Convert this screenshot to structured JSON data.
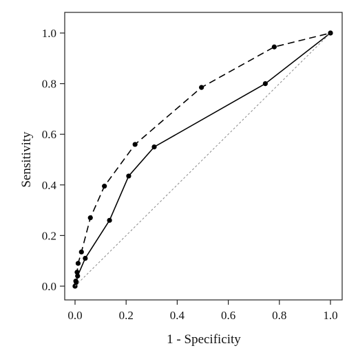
{
  "chart_data": {
    "type": "line",
    "xlabel": "1 - Specificity",
    "ylabel": "Sensitivity",
    "xlim": [
      0,
      1
    ],
    "ylim": [
      0,
      1
    ],
    "x_ticks": [
      "0.0",
      "0.2",
      "0.4",
      "0.6",
      "0.8",
      "1.0"
    ],
    "y_ticks": [
      "0.0",
      "0.2",
      "0.4",
      "0.6",
      "0.8",
      "1.0"
    ],
    "grid": false,
    "legend": "none",
    "series": [
      {
        "style": "solid",
        "color": "#000000",
        "points": [
          [
            0,
            0
          ],
          [
            0.005,
            0.015
          ],
          [
            0.01,
            0.04
          ],
          [
            0.04,
            0.11
          ],
          [
            0.135,
            0.26
          ],
          [
            0.21,
            0.435
          ],
          [
            0.31,
            0.55
          ],
          [
            0.745,
            0.8
          ],
          [
            1.0,
            1.0
          ]
        ]
      },
      {
        "style": "dashed",
        "color": "#000000",
        "points": [
          [
            0,
            0
          ],
          [
            0.003,
            0.02
          ],
          [
            0.008,
            0.055
          ],
          [
            0.012,
            0.09
          ],
          [
            0.025,
            0.135
          ],
          [
            0.06,
            0.27
          ],
          [
            0.115,
            0.395
          ],
          [
            0.235,
            0.56
          ],
          [
            0.495,
            0.785
          ],
          [
            0.78,
            0.945
          ],
          [
            1.0,
            1.0
          ]
        ]
      },
      {
        "style": "dotted-reference",
        "color": "#888888",
        "points": [
          [
            0,
            0
          ],
          [
            1,
            1
          ]
        ]
      }
    ]
  }
}
